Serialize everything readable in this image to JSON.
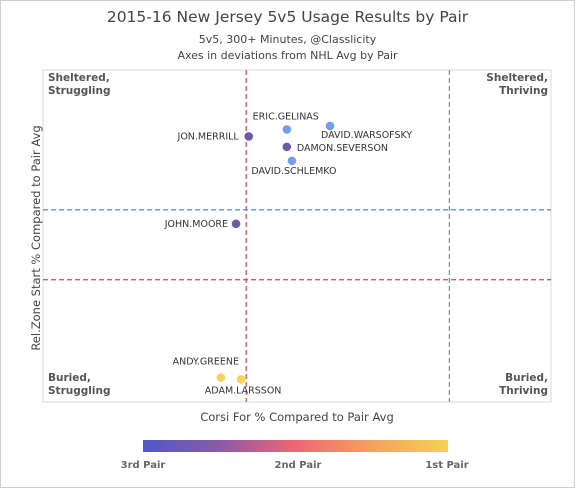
{
  "header": {
    "title": "2015-16 New Jersey 5v5 Usage Results by Pair",
    "subtitle1": "5v5, 300+ Minutes, @Classlicity",
    "subtitle2": "Axes in deviations from NHL Avg by Pair"
  },
  "quadrants": {
    "top_left": [
      "Sheltered,",
      "Struggling"
    ],
    "top_right": [
      "Sheltered,",
      "Thriving"
    ],
    "bottom_left": [
      "Buried,",
      "Struggling"
    ],
    "bottom_right": [
      "Buried,",
      "Thriving"
    ]
  },
  "legend": {
    "low": "3rd Pair",
    "mid": "2nd Pair",
    "high": "1st Pair",
    "colors": [
      "#5059c7",
      "#8a5aa8",
      "#ef6673",
      "#f3a25e",
      "#f7d053"
    ]
  },
  "chart_data": {
    "type": "scatter",
    "xlabel": "Corsi For % Compared to Pair Avg",
    "ylabel": "Rel.Zone Start % Compared to Pair Avg",
    "xlim": [
      -4,
      6
    ],
    "ylim": [
      -3.5,
      6
    ],
    "grid": false,
    "reference_lines": [
      {
        "axis": "x",
        "value": 0,
        "color": "#e8505b",
        "label": ""
      },
      {
        "axis": "x",
        "value": 4,
        "color": "#5b9bd5",
        "label": ""
      },
      {
        "axis": "y",
        "value": 0,
        "color": "#e8505b",
        "label": ""
      },
      {
        "axis": "y",
        "value": 2,
        "color": "#5b9bd5",
        "label": ""
      }
    ],
    "points": [
      {
        "label": "ERIC.GELINAS",
        "x": 0.8,
        "y": 4.3,
        "color": "#6d98f0"
      },
      {
        "label": "DAVID.WARSOFSKY",
        "x": 1.65,
        "y": 4.4,
        "color": "#6d98f0"
      },
      {
        "label": "JON.MERRILL",
        "x": 0.05,
        "y": 4.1,
        "color": "#6a4fa0"
      },
      {
        "label": "DAMON.SEVERSON",
        "x": 0.8,
        "y": 3.8,
        "color": "#6a4fa0"
      },
      {
        "label": "DAVID.SCHLEMKO",
        "x": 0.9,
        "y": 3.4,
        "color": "#6d98f0"
      },
      {
        "label": "JOHN.MOORE",
        "x": -0.2,
        "y": 1.6,
        "color": "#6a4fa0"
      },
      {
        "label": "ANDY.GREENE",
        "x": -0.5,
        "y": -2.8,
        "color": "#f7d053"
      },
      {
        "label": "ADAM.LARSSON",
        "x": -0.1,
        "y": -2.85,
        "color": "#f7d053"
      }
    ]
  }
}
